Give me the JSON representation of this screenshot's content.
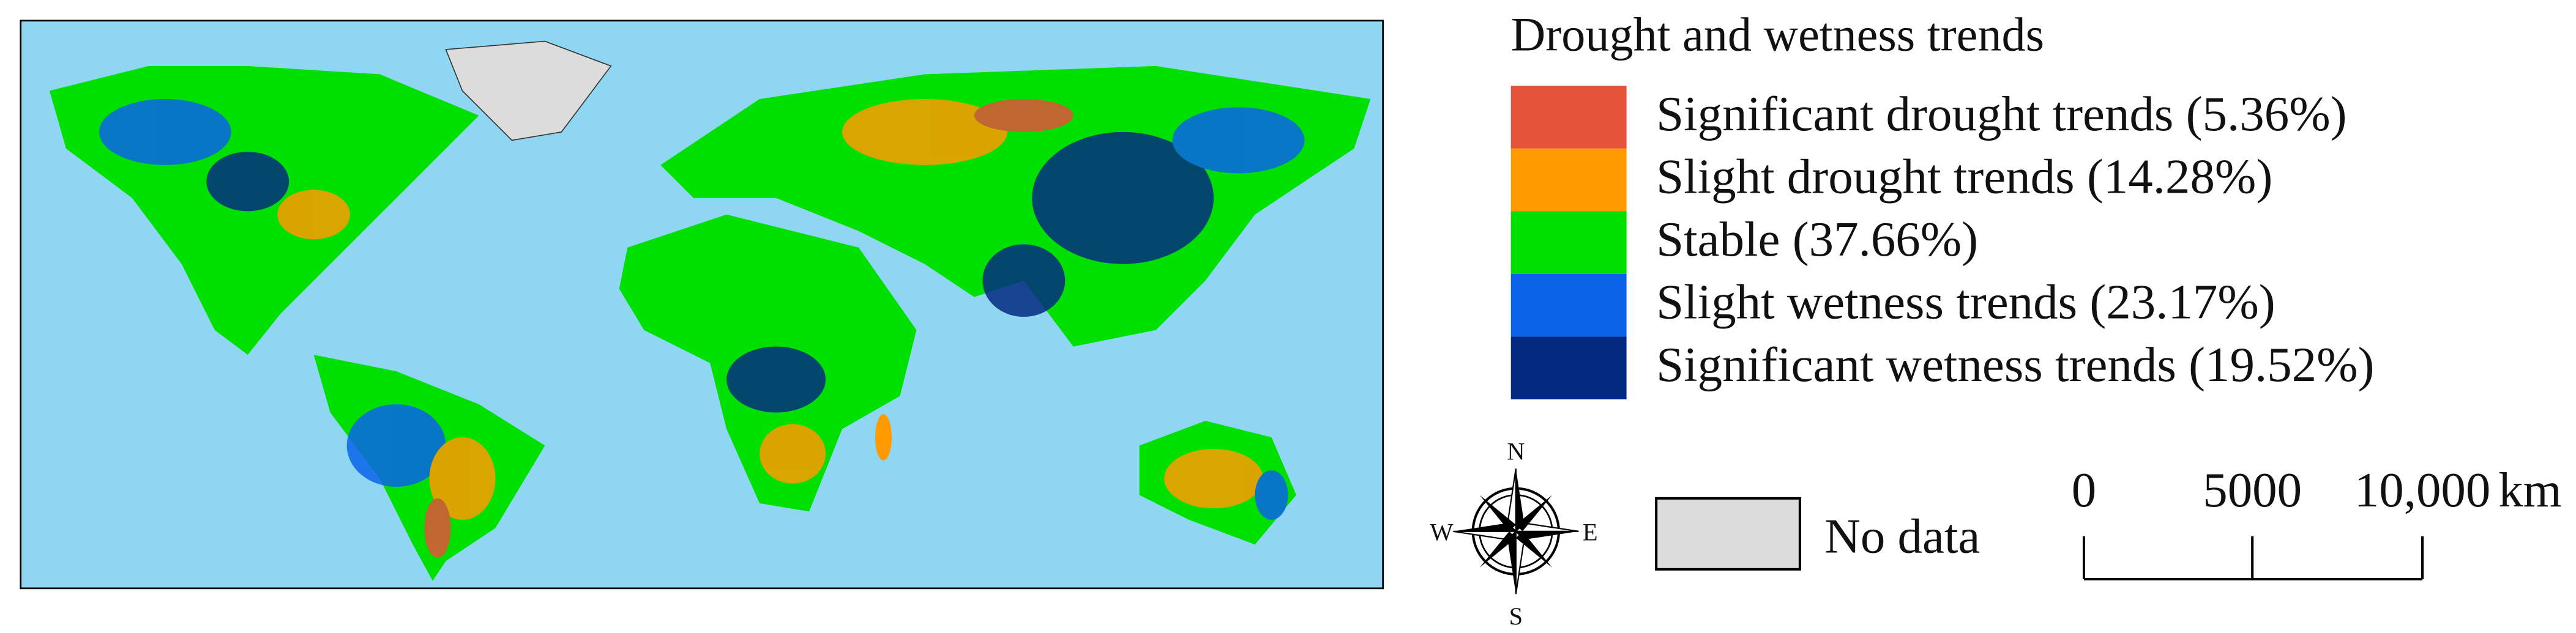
{
  "legend": {
    "title": "Drought and wetness trends",
    "items": [
      {
        "label": "Significant drought trends (5.36%)",
        "color": "#e2533a"
      },
      {
        "label": "Slight drought trends (14.28%)",
        "color": "#ff9a00"
      },
      {
        "label": "Stable (37.66%)",
        "color": "#00e000"
      },
      {
        "label": "Slight wetness trends (23.17%)",
        "color": "#0a64e8"
      },
      {
        "label": "Significant wetness trends (19.52%)",
        "color": "#032a80"
      }
    ]
  },
  "no_data": {
    "label": "No data",
    "color": "#dcdcdc"
  },
  "compass": {
    "north": "N",
    "east": "E",
    "south": "S",
    "west": "W"
  },
  "scale_bar": {
    "labels": [
      "0",
      "5000",
      "10,000"
    ],
    "unit": "km"
  }
}
